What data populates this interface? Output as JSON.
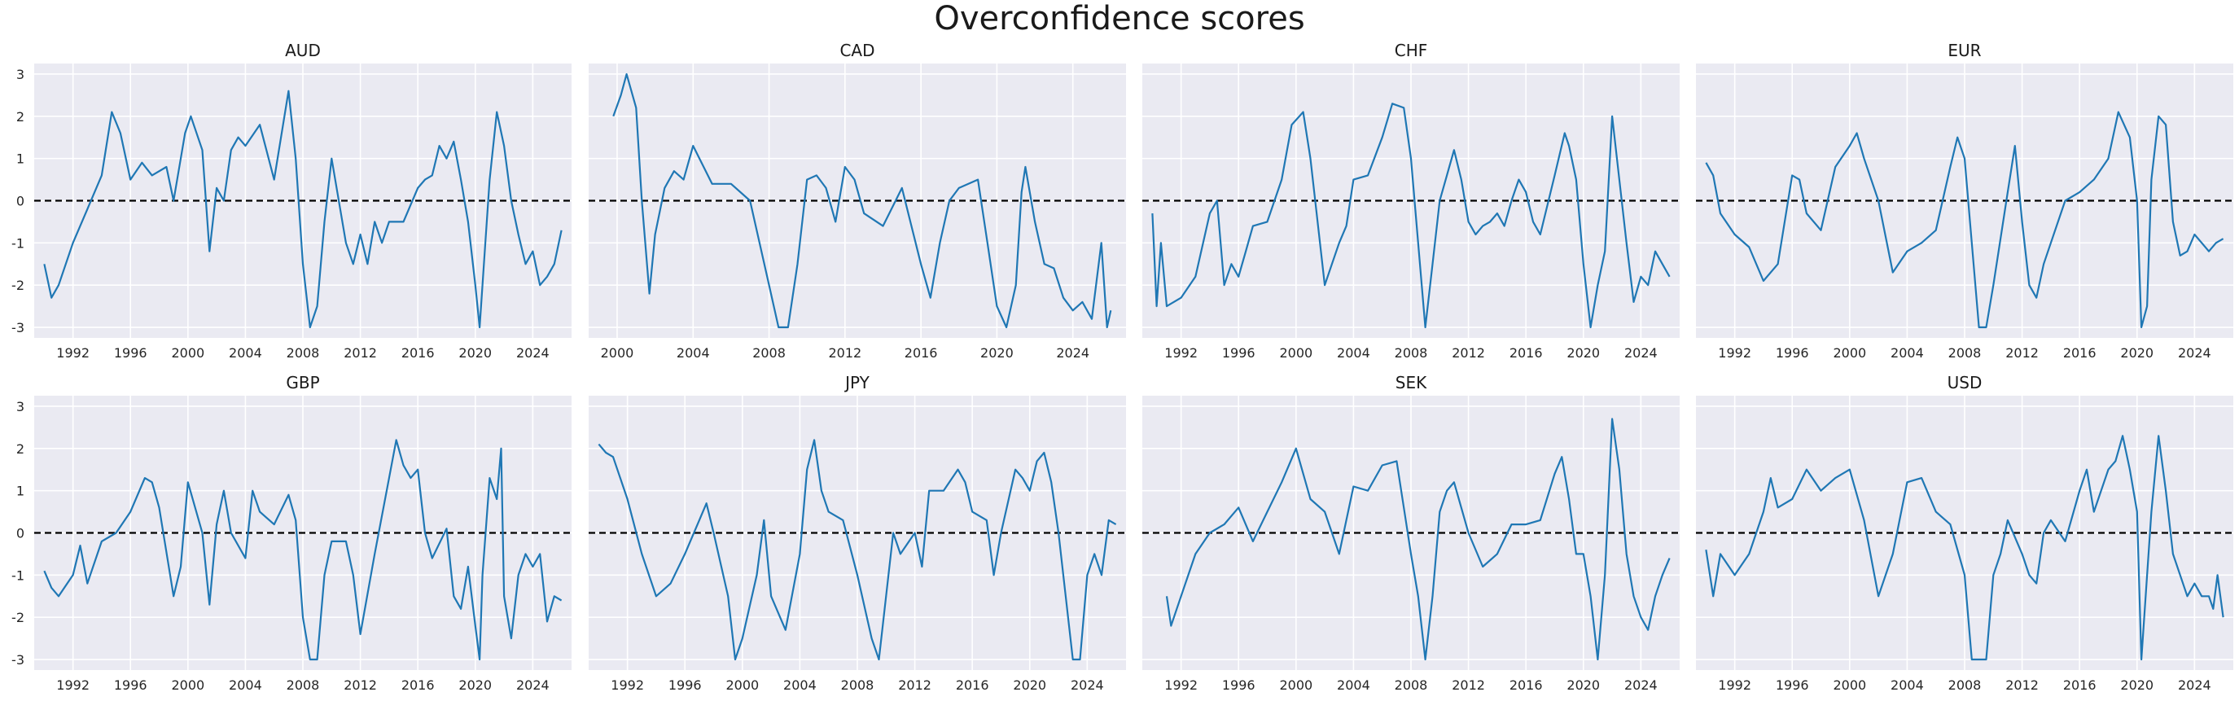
{
  "chart_data": {
    "type": "line",
    "title": "Overconfidence scores",
    "ylim": [
      -3.25,
      3.25
    ],
    "yticks": [
      -3,
      -2,
      -1,
      0,
      1,
      2,
      3
    ],
    "reference_line": {
      "y": 0,
      "style": "dashed",
      "color": "#000000"
    },
    "line_color": "#1f77b4",
    "panels": [
      {
        "title": "AUD",
        "xlim": [
          1989.3,
          2026.7
        ],
        "xticks": [
          1992,
          1996,
          2000,
          2004,
          2008,
          2012,
          2016,
          2020,
          2024
        ],
        "x": [
          1990.0,
          1990.5,
          1991.0,
          1992.0,
          1993.0,
          1994.0,
          1994.7,
          1995.3,
          1996.0,
          1996.8,
          1997.5,
          1998.5,
          1999.0,
          1999.8,
          2000.2,
          2001.0,
          2001.5,
          2002.0,
          2002.5,
          2003.0,
          2003.5,
          2004.0,
          2005.0,
          2006.0,
          2007.0,
          2007.5,
          2008.0,
          2008.5,
          2009.0,
          2009.5,
          2010.0,
          2010.5,
          2011.0,
          2011.5,
          2012.0,
          2012.5,
          2013.0,
          2013.5,
          2014.0,
          2015.0,
          2016.0,
          2016.5,
          2017.0,
          2017.5,
          2018.0,
          2018.5,
          2019.0,
          2019.5,
          2020.0,
          2020.3,
          2020.7,
          2021.0,
          2021.5,
          2022.0,
          2022.5,
          2023.0,
          2023.5,
          2024.0,
          2024.5,
          2025.0,
          2025.5,
          2026.0
        ],
        "y": [
          -1.5,
          -2.3,
          -2.0,
          -1.0,
          -0.2,
          0.6,
          2.1,
          1.6,
          0.5,
          0.9,
          0.6,
          0.8,
          0.0,
          1.6,
          2.0,
          1.2,
          -1.2,
          0.3,
          0.0,
          1.2,
          1.5,
          1.3,
          1.8,
          0.5,
          2.6,
          1.0,
          -1.5,
          -3.0,
          -2.5,
          -0.5,
          1.0,
          0.0,
          -1.0,
          -1.5,
          -0.8,
          -1.5,
          -0.5,
          -1.0,
          -0.5,
          -0.5,
          0.3,
          0.5,
          0.6,
          1.3,
          1.0,
          1.4,
          0.5,
          -0.5,
          -2.0,
          -3.0,
          -1.0,
          0.5,
          2.1,
          1.3,
          0.0,
          -0.8,
          -1.5,
          -1.2,
          -2.0,
          -1.8,
          -1.5,
          -0.7
        ]
      },
      {
        "title": "CAD",
        "xlim": [
          1998.5,
          2026.8
        ],
        "xticks": [
          2000,
          2004,
          2008,
          2012,
          2016,
          2020,
          2024
        ],
        "x": [
          1999.8,
          2000.2,
          2000.5,
          2001.0,
          2001.3,
          2001.7,
          2002.0,
          2002.5,
          2003.0,
          2003.5,
          2004.0,
          2005.0,
          2006.0,
          2007.0,
          2008.0,
          2008.5,
          2009.0,
          2009.5,
          2010.0,
          2010.5,
          2011.0,
          2011.5,
          2012.0,
          2012.5,
          2013.0,
          2014.0,
          2015.0,
          2016.0,
          2016.5,
          2017.0,
          2017.5,
          2018.0,
          2019.0,
          2019.5,
          2020.0,
          2020.5,
          2021.0,
          2021.3,
          2021.5,
          2022.0,
          2022.5,
          2023.0,
          2023.5,
          2024.0,
          2024.5,
          2025.0,
          2025.5,
          2025.8,
          2026.0
        ],
        "y": [
          2.0,
          2.5,
          3.0,
          2.2,
          0.0,
          -2.2,
          -0.8,
          0.3,
          0.7,
          0.5,
          1.3,
          0.4,
          0.4,
          0.0,
          -2.0,
          -3.0,
          -3.0,
          -1.5,
          0.5,
          0.6,
          0.3,
          -0.5,
          0.8,
          0.5,
          -0.3,
          -0.6,
          0.3,
          -1.5,
          -2.3,
          -1.0,
          0.0,
          0.3,
          0.5,
          -1.0,
          -2.5,
          -3.0,
          -2.0,
          0.2,
          0.8,
          -0.5,
          -1.5,
          -1.6,
          -2.3,
          -2.6,
          -2.4,
          -2.8,
          -1.0,
          -3.0,
          -2.6
        ]
      },
      {
        "title": "CHF",
        "xlim": [
          1989.3,
          2026.7
        ],
        "xticks": [
          1992,
          1996,
          2000,
          2004,
          2008,
          2012,
          2016,
          2020,
          2024
        ],
        "x": [
          1990.0,
          1990.3,
          1990.6,
          1991.0,
          1992.0,
          1993.0,
          1994.0,
          1994.5,
          1995.0,
          1995.5,
          1996.0,
          1996.5,
          1997.0,
          1998.0,
          1999.0,
          1999.7,
          2000.5,
          2001.0,
          2001.5,
          2002.0,
          2002.5,
          2003.0,
          2003.5,
          2004.0,
          2005.0,
          2006.0,
          2006.7,
          2007.5,
          2008.0,
          2008.5,
          2009.0,
          2009.5,
          2010.0,
          2010.5,
          2011.0,
          2011.5,
          2012.0,
          2012.5,
          2013.0,
          2013.5,
          2014.0,
          2014.5,
          2015.0,
          2015.5,
          2016.0,
          2016.5,
          2017.0,
          2018.0,
          2018.7,
          2019.0,
          2019.5,
          2020.0,
          2020.5,
          2021.0,
          2021.5,
          2022.0,
          2022.5,
          2023.0,
          2023.5,
          2024.0,
          2024.5,
          2025.0,
          2025.5,
          2026.0
        ],
        "y": [
          -0.3,
          -2.5,
          -1.0,
          -2.5,
          -2.3,
          -1.8,
          -0.3,
          0.0,
          -2.0,
          -1.5,
          -1.8,
          -1.2,
          -0.6,
          -0.5,
          0.5,
          1.8,
          2.1,
          1.0,
          -0.5,
          -2.0,
          -1.5,
          -1.0,
          -0.6,
          0.5,
          0.6,
          1.5,
          2.3,
          2.2,
          1.0,
          -1.0,
          -3.0,
          -1.5,
          0.0,
          0.6,
          1.2,
          0.5,
          -0.5,
          -0.8,
          -0.6,
          -0.5,
          -0.3,
          -0.6,
          0.0,
          0.5,
          0.2,
          -0.5,
          -0.8,
          0.6,
          1.6,
          1.3,
          0.5,
          -1.5,
          -3.0,
          -2.0,
          -1.2,
          2.0,
          0.5,
          -1.0,
          -2.4,
          -1.8,
          -2.0,
          -1.2,
          -1.5,
          -1.8
        ]
      },
      {
        "title": "EUR",
        "xlim": [
          1989.3,
          2026.7
        ],
        "xticks": [
          1992,
          1996,
          2000,
          2004,
          2008,
          2012,
          2016,
          2020,
          2024
        ],
        "x": [
          1990.0,
          1990.5,
          1991.0,
          1992.0,
          1993.0,
          1994.0,
          1995.0,
          1996.0,
          1996.5,
          1997.0,
          1998.0,
          1999.0,
          2000.0,
          2000.5,
          2001.0,
          2002.0,
          2003.0,
          2004.0,
          2005.0,
          2006.0,
          2007.0,
          2007.5,
          2008.0,
          2008.5,
          2009.0,
          2009.5,
          2010.0,
          2011.0,
          2011.5,
          2012.0,
          2012.5,
          2013.0,
          2013.5,
          2014.0,
          2015.0,
          2016.0,
          2017.0,
          2018.0,
          2018.7,
          2019.5,
          2020.0,
          2020.3,
          2020.7,
          2021.0,
          2021.5,
          2022.0,
          2022.5,
          2023.0,
          2023.5,
          2024.0,
          2024.5,
          2025.0,
          2025.5,
          2026.0
        ],
        "y": [
          0.9,
          0.6,
          -0.3,
          -0.8,
          -1.1,
          -1.9,
          -1.5,
          0.6,
          0.5,
          -0.3,
          -0.7,
          0.8,
          1.3,
          1.6,
          1.0,
          0.0,
          -1.7,
          -1.2,
          -1.0,
          -0.7,
          0.8,
          1.5,
          1.0,
          -1.0,
          -3.0,
          -3.0,
          -2.0,
          0.2,
          1.3,
          -0.5,
          -2.0,
          -2.3,
          -1.5,
          -1.0,
          0.0,
          0.2,
          0.5,
          1.0,
          2.1,
          1.5,
          0.0,
          -3.0,
          -2.5,
          0.5,
          2.0,
          1.8,
          -0.5,
          -1.3,
          -1.2,
          -0.8,
          -1.0,
          -1.2,
          -1.0,
          -0.9
        ]
      },
      {
        "title": "GBP",
        "xlim": [
          1989.3,
          2026.7
        ],
        "xticks": [
          1992,
          1996,
          2000,
          2004,
          2008,
          2012,
          2016,
          2020,
          2024
        ],
        "x": [
          1990.0,
          1990.5,
          1991.0,
          1992.0,
          1992.5,
          1993.0,
          1994.0,
          1995.0,
          1996.0,
          1997.0,
          1997.5,
          1998.0,
          1999.0,
          1999.5,
          2000.0,
          2001.0,
          2001.5,
          2002.0,
          2002.5,
          2003.0,
          2004.0,
          2004.5,
          2005.0,
          2006.0,
          2007.0,
          2007.5,
          2008.0,
          2008.5,
          2009.0,
          2009.5,
          2010.0,
          2011.0,
          2011.5,
          2012.0,
          2013.0,
          2014.0,
          2014.5,
          2015.0,
          2015.5,
          2016.0,
          2016.5,
          2017.0,
          2018.0,
          2018.5,
          2019.0,
          2019.5,
          2020.0,
          2020.3,
          2020.5,
          2021.0,
          2021.5,
          2021.8,
          2022.0,
          2022.5,
          2023.0,
          2023.5,
          2024.0,
          2024.5,
          2025.0,
          2025.5,
          2026.0
        ],
        "y": [
          -0.9,
          -1.3,
          -1.5,
          -1.0,
          -0.3,
          -1.2,
          -0.2,
          0.0,
          0.5,
          1.3,
          1.2,
          0.6,
          -1.5,
          -0.8,
          1.2,
          0.0,
          -1.7,
          0.2,
          1.0,
          0.0,
          -0.6,
          1.0,
          0.5,
          0.2,
          0.9,
          0.3,
          -2.0,
          -3.0,
          -3.0,
          -1.0,
          -0.2,
          -0.2,
          -1.0,
          -2.4,
          -0.5,
          1.3,
          2.2,
          1.6,
          1.3,
          1.5,
          0.0,
          -0.6,
          0.1,
          -1.5,
          -1.8,
          -0.8,
          -2.2,
          -3.0,
          -1.0,
          1.3,
          0.8,
          2.0,
          -1.5,
          -2.5,
          -1.0,
          -0.5,
          -0.8,
          -0.5,
          -2.1,
          -1.5,
          -1.6
        ]
      },
      {
        "title": "JPY",
        "xlim": [
          1989.3,
          2026.7
        ],
        "xticks": [
          1992,
          1996,
          2000,
          2004,
          2008,
          2012,
          2016,
          2020,
          2024
        ],
        "x": [
          1990.0,
          1990.5,
          1991.0,
          1992.0,
          1993.0,
          1994.0,
          1995.0,
          1996.0,
          1997.0,
          1997.5,
          1998.0,
          1999.0,
          1999.5,
          2000.0,
          2001.0,
          2001.5,
          2002.0,
          2003.0,
          2004.0,
          2004.5,
          2005.0,
          2005.5,
          2006.0,
          2007.0,
          2008.0,
          2009.0,
          2009.5,
          2010.0,
          2010.5,
          2011.0,
          2012.0,
          2012.5,
          2013.0,
          2014.0,
          2015.0,
          2015.5,
          2016.0,
          2017.0,
          2017.5,
          2018.0,
          2019.0,
          2019.5,
          2020.0,
          2020.5,
          2021.0,
          2021.5,
          2022.0,
          2022.5,
          2023.0,
          2023.5,
          2024.0,
          2024.5,
          2025.0,
          2025.5,
          2026.0
        ],
        "y": [
          2.1,
          1.9,
          1.8,
          0.8,
          -0.5,
          -1.5,
          -1.2,
          -0.5,
          0.3,
          0.7,
          0.0,
          -1.5,
          -3.0,
          -2.5,
          -1.0,
          0.3,
          -1.5,
          -2.3,
          -0.5,
          1.5,
          2.2,
          1.0,
          0.5,
          0.3,
          -1.0,
          -2.5,
          -3.0,
          -1.5,
          0.0,
          -0.5,
          0.0,
          -0.8,
          1.0,
          1.0,
          1.5,
          1.2,
          0.5,
          0.3,
          -1.0,
          0.0,
          1.5,
          1.3,
          1.0,
          1.7,
          1.9,
          1.2,
          0.0,
          -1.5,
          -3.0,
          -3.0,
          -1.0,
          -0.5,
          -1.0,
          0.3,
          0.2
        ]
      },
      {
        "title": "SEK",
        "xlim": [
          1989.3,
          2026.7
        ],
        "xticks": [
          1992,
          1996,
          2000,
          2004,
          2008,
          2012,
          2016,
          2020,
          2024
        ],
        "x": [
          1991.0,
          1991.3,
          1992.0,
          1993.0,
          1994.0,
          1995.0,
          1996.0,
          1997.0,
          1998.0,
          1999.0,
          2000.0,
          2001.0,
          2002.0,
          2003.0,
          2003.5,
          2004.0,
          2005.0,
          2006.0,
          2007.0,
          2008.0,
          2008.5,
          2009.0,
          2009.5,
          2010.0,
          2010.5,
          2011.0,
          2012.0,
          2013.0,
          2014.0,
          2015.0,
          2016.0,
          2017.0,
          2018.0,
          2018.5,
          2019.0,
          2019.5,
          2020.0,
          2020.5,
          2021.0,
          2021.5,
          2022.0,
          2022.5,
          2023.0,
          2023.5,
          2024.0,
          2024.5,
          2025.0,
          2025.5,
          2026.0
        ],
        "y": [
          -1.5,
          -2.2,
          -1.5,
          -0.5,
          0.0,
          0.2,
          0.6,
          -0.2,
          0.5,
          1.2,
          2.0,
          0.8,
          0.5,
          -0.5,
          0.3,
          1.1,
          1.0,
          1.6,
          1.7,
          -0.5,
          -1.5,
          -3.0,
          -1.5,
          0.5,
          1.0,
          1.2,
          0.0,
          -0.8,
          -0.5,
          0.2,
          0.2,
          0.3,
          1.4,
          1.8,
          0.8,
          -0.5,
          -0.5,
          -1.5,
          -3.0,
          -1.0,
          2.7,
          1.5,
          -0.5,
          -1.5,
          -2.0,
          -2.3,
          -1.5,
          -1.0,
          -0.6
        ]
      },
      {
        "title": "USD",
        "xlim": [
          1989.3,
          2026.7
        ],
        "xticks": [
          1992,
          1996,
          2000,
          2004,
          2008,
          2012,
          2016,
          2020,
          2024
        ],
        "x": [
          1990.0,
          1990.5,
          1991.0,
          1992.0,
          1993.0,
          1994.0,
          1994.5,
          1995.0,
          1996.0,
          1997.0,
          1998.0,
          1999.0,
          2000.0,
          2001.0,
          2002.0,
          2003.0,
          2004.0,
          2005.0,
          2006.0,
          2007.0,
          2008.0,
          2008.5,
          2009.0,
          2009.5,
          2010.0,
          2010.5,
          2011.0,
          2012.0,
          2012.5,
          2013.0,
          2013.5,
          2014.0,
          2015.0,
          2016.0,
          2016.5,
          2017.0,
          2018.0,
          2018.5,
          2019.0,
          2019.5,
          2020.0,
          2020.3,
          2020.5,
          2021.0,
          2021.5,
          2022.0,
          2022.5,
          2023.0,
          2023.5,
          2024.0,
          2024.5,
          2025.0,
          2025.3,
          2025.6,
          2026.0
        ],
        "y": [
          -0.4,
          -1.5,
          -0.5,
          -1.0,
          -0.5,
          0.5,
          1.3,
          0.6,
          0.8,
          1.5,
          1.0,
          1.3,
          1.5,
          0.3,
          -1.5,
          -0.5,
          1.2,
          1.3,
          0.5,
          0.2,
          -1.0,
          -3.0,
          -3.0,
          -3.0,
          -1.0,
          -0.5,
          0.3,
          -0.5,
          -1.0,
          -1.2,
          0.0,
          0.3,
          -0.2,
          1.0,
          1.5,
          0.5,
          1.5,
          1.7,
          2.3,
          1.5,
          0.5,
          -3.0,
          -2.0,
          0.5,
          2.3,
          1.0,
          -0.5,
          -1.0,
          -1.5,
          -1.2,
          -1.5,
          -1.5,
          -1.8,
          -1.0,
          -2.0
        ]
      }
    ]
  }
}
